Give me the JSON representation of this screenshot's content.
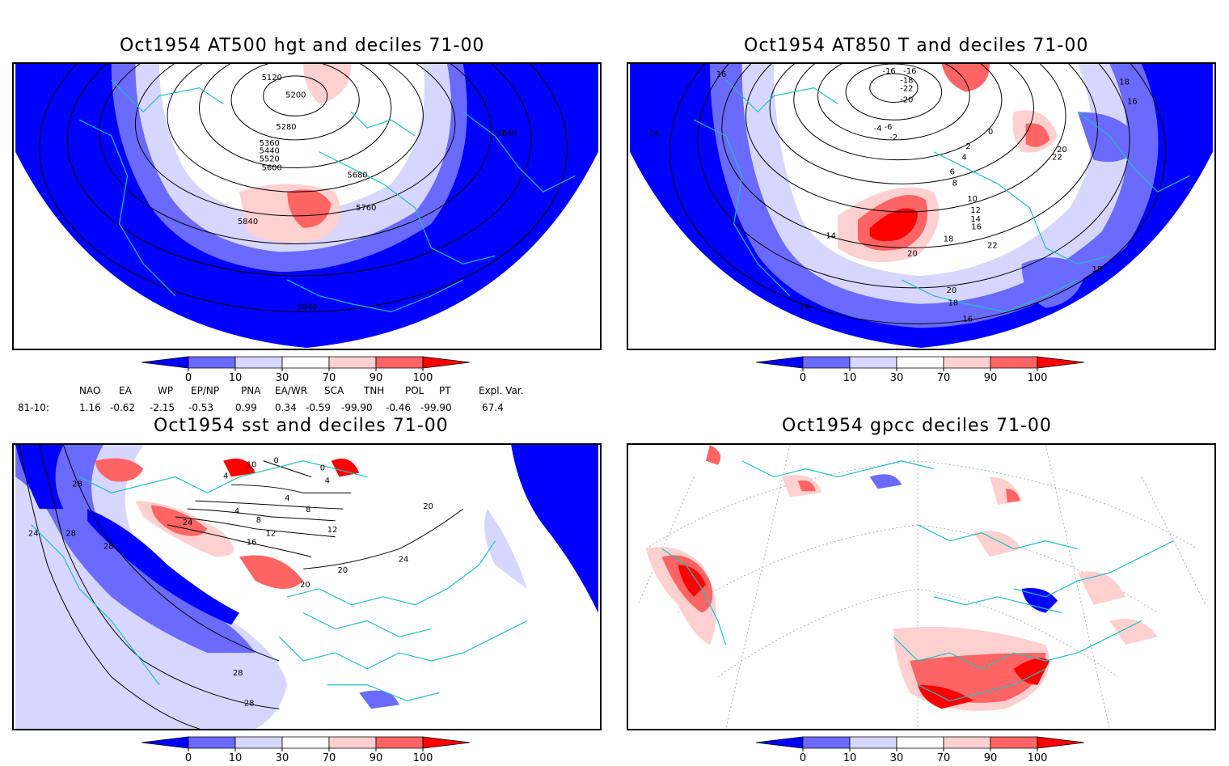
{
  "panels": [
    {
      "id": "hgt",
      "title": "Oct1954 AT500 hgt and deciles 71-00",
      "contour_labels": [
        "5120",
        "5200",
        "5280",
        "5360",
        "5440",
        "5520",
        "5600",
        "5680",
        "5760",
        "5840",
        "5840",
        "5840"
      ]
    },
    {
      "id": "t850",
      "title": "Oct1954 AT850 T and deciles 71-00",
      "contour_labels": [
        "-16",
        "-16",
        "-18",
        "-22",
        "-20",
        "-4",
        "-6",
        "-2",
        "0",
        "2",
        "4",
        "6",
        "8",
        "10",
        "12",
        "14",
        "16",
        "18",
        "20",
        "22",
        "22",
        "20",
        "20",
        "18",
        "16",
        "16",
        "18",
        "14",
        "14",
        "14",
        "18",
        "16"
      ]
    },
    {
      "id": "sst",
      "title": "Oct1954 sst and deciles 71-00",
      "contour_labels": [
        "28",
        "24",
        "28",
        "28",
        "24",
        "10",
        "0",
        "4",
        "0",
        "4",
        "4",
        "8",
        "4",
        "8",
        "12",
        "16",
        "12",
        "20",
        "20",
        "24",
        "20",
        "28",
        "28"
      ]
    },
    {
      "id": "gpcc",
      "title": "Oct1954 gpcc deciles 71-00",
      "contour_labels": []
    }
  ],
  "colorbar": {
    "ticks": [
      "0",
      "10",
      "30",
      "70",
      "90",
      "100"
    ],
    "colors": [
      "#0000ff",
      "#6a6aff",
      "#d6d6ff",
      "#ffffff",
      "#ffd0d0",
      "#ff6464",
      "#ff0000"
    ]
  },
  "indices": {
    "headers": [
      "NAO",
      "EA",
      "WP",
      "EP/NP",
      "PNA",
      "EA/WR",
      "SCA",
      "TNH",
      "POL",
      "PT",
      "Expl. Var."
    ],
    "row_label": "81-10:",
    "values": [
      "1.16",
      "-0.62",
      "-2.15",
      "-0.53",
      "0.99",
      "0.34",
      "-0.59",
      "-99.90",
      "-0.46",
      "-99.90",
      "67.4"
    ]
  },
  "colors": {
    "blue_dark": "#0000ff",
    "blue_mid": "#6a6aff",
    "blue_light": "#d6d6ff",
    "red_light": "#ffd0d0",
    "red_mid": "#ff6464",
    "red_dark": "#ff0000",
    "coast": "#20c0c0"
  }
}
